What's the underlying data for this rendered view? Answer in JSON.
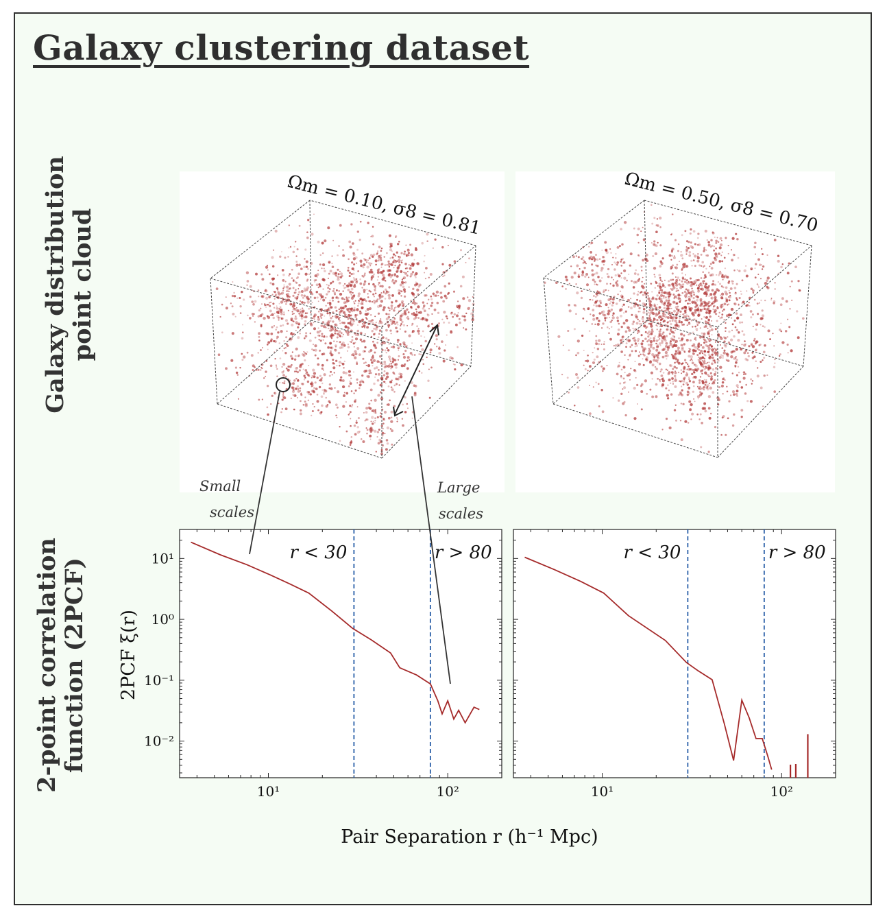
{
  "page": {
    "title": "Galaxy clustering dataset",
    "row_labels": {
      "point_cloud": [
        "Galaxy distribution",
        "point cloud"
      ],
      "correlation": [
        "2-point correlation",
        "function (2PCF)"
      ]
    },
    "annotations": {
      "small_scales": [
        "Small",
        "scales"
      ],
      "large_scales": [
        "Large",
        "scales"
      ]
    },
    "shared_xlabel": "Pair Separation r (h⁻¹ Mpc)",
    "colors": {
      "points": "#b23a3a",
      "curve": "#a52a2a",
      "cut_lines": "#2a5fa8",
      "frame_bg": "#f5fcf4"
    }
  },
  "clouds": [
    {
      "title": "Ωm = 0.10, σ8 = 0.81"
    },
    {
      "title": "Ωm = 0.50, σ8 = 0.70"
    }
  ],
  "chart_data": [
    {
      "type": "line",
      "xscale": "log",
      "yscale": "log",
      "xlim": [
        3.2,
        200
      ],
      "ylim": [
        0.0025,
        30
      ],
      "ylabel": "2PCF ξ(r)",
      "xticks": [
        "10¹",
        "10²"
      ],
      "yticks": [
        "10¹",
        "10⁰",
        "10⁻¹",
        "10⁻²"
      ],
      "x": [
        3.7,
        5.4,
        7.6,
        10.2,
        13.2,
        16.8,
        22.5,
        29.5,
        37.5,
        48.0,
        54.0,
        67.0,
        80.0,
        88.0,
        93.0,
        100.0,
        108.0,
        115.0,
        125.0,
        140.0,
        150.0
      ],
      "y": [
        18.5,
        11.5,
        7.9,
        5.4,
        3.8,
        2.7,
        1.38,
        0.71,
        0.46,
        0.28,
        0.16,
        0.122,
        0.087,
        0.046,
        0.028,
        0.046,
        0.023,
        0.032,
        0.02,
        0.036,
        0.033
      ],
      "thresholds": [
        {
          "x": 30,
          "label": "r < 30"
        },
        {
          "x": 80,
          "label": "r > 80"
        }
      ]
    },
    {
      "type": "line",
      "xscale": "log",
      "yscale": "log",
      "xlim": [
        3.2,
        200
      ],
      "ylim": [
        0.0025,
        30
      ],
      "ylabel": "",
      "xticks": [
        "10¹",
        "10²"
      ],
      "yticks": [],
      "x": [
        3.7,
        5.4,
        7.6,
        10.2,
        14.0,
        22.5,
        29.5,
        34.0,
        41.0,
        48.0,
        54.0,
        60.0,
        66.0,
        72.0,
        78.0,
        84.0,
        88.0
      ],
      "y": [
        10.5,
        6.6,
        4.2,
        2.7,
        1.15,
        0.45,
        0.195,
        0.145,
        0.102,
        0.019,
        0.0048,
        0.047,
        0.024,
        0.011,
        0.011,
        0.0055,
        0.0034
      ],
      "spikes": [
        {
          "x": 112,
          "y": 0.0041
        },
        {
          "x": 120,
          "y": 0.0042
        },
        {
          "x": 140,
          "y": 0.013
        }
      ],
      "thresholds": [
        {
          "x": 30,
          "label": "r < 30"
        },
        {
          "x": 80,
          "label": "r > 80"
        }
      ]
    }
  ]
}
